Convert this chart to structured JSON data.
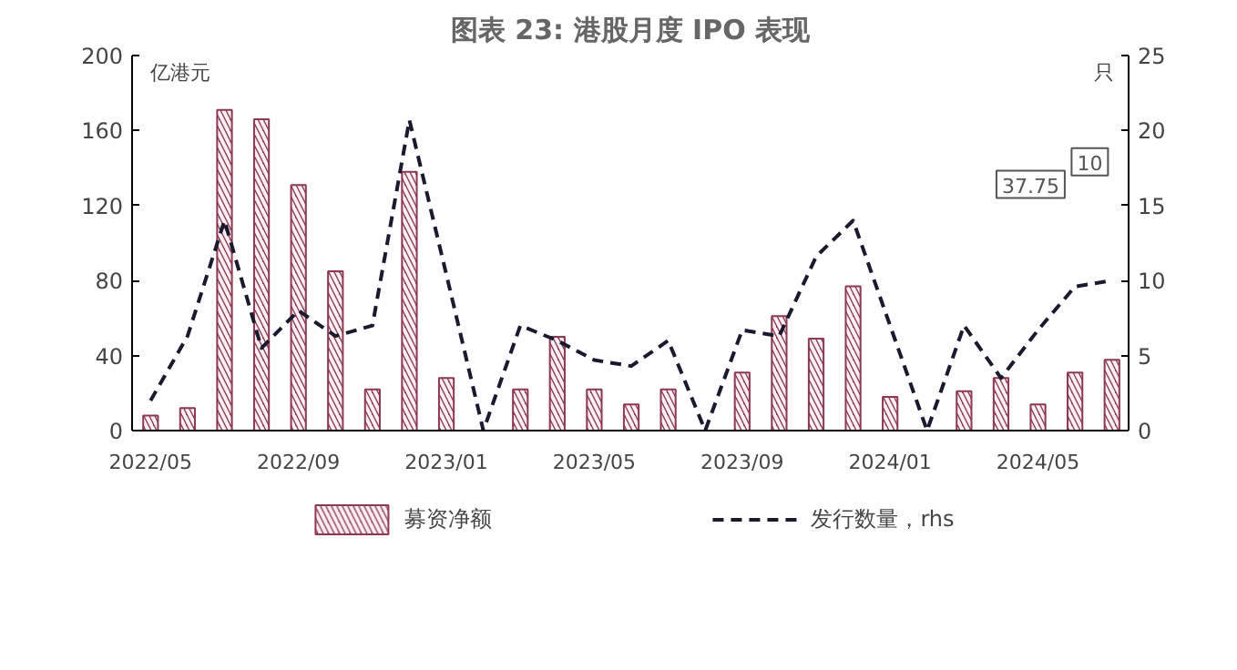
{
  "chart_data": {
    "type": "bar",
    "title": "图表 23: 港股月度 IPO 表现",
    "ylabel": "亿港元",
    "y2label": "只",
    "categories": [
      "2022/05",
      null,
      null,
      null,
      "2022/09",
      null,
      null,
      null,
      "2023/01",
      null,
      null,
      null,
      "2023/05",
      null,
      null,
      null,
      "2023/09",
      null,
      null,
      null,
      "2024/01",
      null,
      null,
      null,
      "2024/05",
      null,
      null
    ],
    "series": [
      {
        "name": "募资净额",
        "color": "#8b3a52",
        "values": [
          8,
          12,
          171,
          166,
          131,
          85,
          22,
          138,
          28,
          0,
          22,
          50,
          22,
          14,
          22,
          0,
          31,
          61,
          49,
          77,
          18,
          0,
          21,
          28,
          14,
          31,
          37.75
        ]
      },
      {
        "name": "发行数量，rhs",
        "type": "line",
        "axis": "y2",
        "color": "#1a1a2e",
        "line_style": "dashed",
        "marker": "none",
        "values": [
          2,
          6.3,
          14,
          5.5,
          8,
          6.3,
          7,
          20.7,
          10.4,
          0,
          7,
          6,
          4.7,
          4.3,
          6,
          0,
          6.7,
          6.3,
          11.6,
          14,
          7,
          0,
          7,
          3.5,
          6.7,
          9.6,
          10
        ]
      }
    ],
    "ylim": [
      0,
      200
    ],
    "yticks": [
      0,
      40,
      80,
      120,
      160,
      200
    ],
    "y2lim": [
      0,
      25
    ],
    "y2ticks": [
      0,
      5,
      10,
      15,
      20,
      25
    ],
    "grid": false,
    "legend": "bottom",
    "annotations": [
      "37.75",
      "10"
    ]
  }
}
